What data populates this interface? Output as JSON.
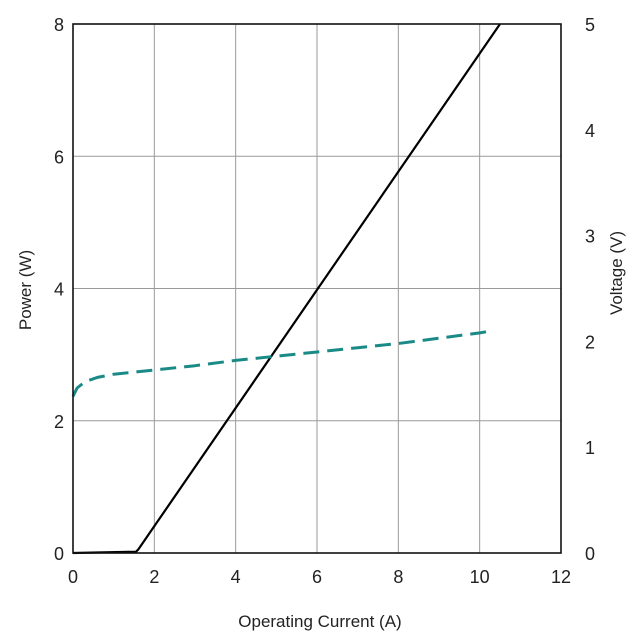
{
  "chart_data": {
    "type": "line",
    "xlabel": "Operating Current (A)",
    "ylabel": "Power (W)",
    "y2label": "Voltage (V)",
    "xlim": [
      0,
      12
    ],
    "ylim": [
      0,
      8
    ],
    "y2lim": [
      0,
      5
    ],
    "x_ticks": [
      0,
      2,
      4,
      6,
      8,
      10,
      12
    ],
    "y_ticks": [
      0,
      2,
      4,
      6,
      8
    ],
    "y2_ticks": [
      0,
      1,
      2,
      3,
      4,
      5
    ],
    "grid": true,
    "series": [
      {
        "axis": "left",
        "color": "#000000",
        "style": "solid",
        "x": [
          0,
          1.55,
          1.6,
          10.5
        ],
        "y": [
          0,
          0.02,
          0.05,
          8.0
        ]
      },
      {
        "axis": "right",
        "color": "#1a8a86",
        "style": "dashed",
        "x": [
          0,
          0.1,
          0.3,
          0.6,
          1.0,
          2.0,
          3.0,
          4.0,
          5.0,
          6.0,
          7.0,
          8.0,
          9.0,
          10.0,
          10.3
        ],
        "y": [
          1.48,
          1.56,
          1.62,
          1.66,
          1.69,
          1.73,
          1.77,
          1.82,
          1.86,
          1.9,
          1.94,
          1.98,
          2.03,
          2.08,
          2.1
        ]
      }
    ]
  }
}
